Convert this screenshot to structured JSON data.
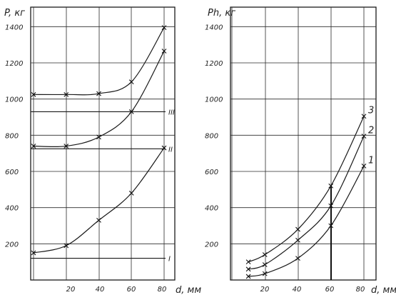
{
  "chart_data": [
    {
      "type": "line",
      "ylabel": "P, кг",
      "xlabel": "d, мм",
      "x_ticks": [
        "20",
        "40",
        "60",
        "80"
      ],
      "y_ticks": [
        "200",
        "400",
        "600",
        "800",
        "1000",
        "1200",
        "1400"
      ],
      "xlim": [
        0,
        80
      ],
      "ylim": [
        0,
        1500
      ],
      "grid": true,
      "series": [
        {
          "x": [
            0,
            20,
            40,
            60,
            80
          ],
          "values": [
            1025,
            1025,
            1030,
            1095,
            1395
          ]
        },
        {
          "x": [
            0,
            20,
            40,
            60,
            80
          ],
          "values": [
            740,
            740,
            790,
            930,
            1265
          ]
        },
        {
          "x": [
            0,
            20,
            40,
            60,
            80
          ],
          "values": [
            150,
            190,
            330,
            480,
            730
          ]
        }
      ],
      "reference_lines": [
        {
          "label": "III",
          "value": 930
        },
        {
          "label": "II",
          "value": 725
        },
        {
          "label": "I",
          "value": 120
        }
      ]
    },
    {
      "type": "line",
      "ylabel": "Ph, кг",
      "xlabel": "d, мм",
      "x_ticks": [
        "20",
        "40",
        "60",
        "80"
      ],
      "y_ticks": [
        "200",
        "400",
        "600",
        "800",
        "1000",
        "1200",
        "1400"
      ],
      "xlim": [
        0,
        80
      ],
      "ylim": [
        0,
        1500
      ],
      "grid": true,
      "series": [
        {
          "name": "3",
          "x": [
            10,
            20,
            40,
            60,
            80
          ],
          "values": [
            100,
            140,
            280,
            520,
            905
          ]
        },
        {
          "name": "2",
          "x": [
            10,
            20,
            40,
            60,
            80
          ],
          "values": [
            60,
            85,
            220,
            410,
            795
          ]
        },
        {
          "name": "1",
          "x": [
            10,
            20,
            40,
            60,
            80
          ],
          "values": [
            20,
            35,
            120,
            300,
            630
          ]
        }
      ]
    }
  ]
}
